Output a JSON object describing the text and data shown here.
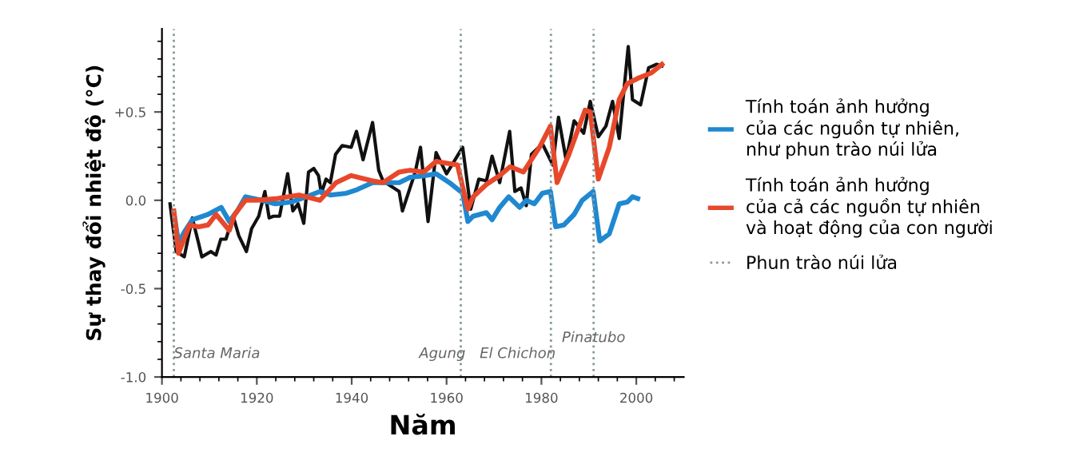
{
  "chart_data": {
    "type": "line",
    "xlabel": "Năm",
    "ylabel": "Sự thay đổi nhiệt độ (°C)",
    "xlim": [
      1900,
      2010
    ],
    "xticks": [
      1900,
      1920,
      1940,
      1960,
      1980,
      2000
    ],
    "ylim": [
      -1.0,
      0.97
    ],
    "yticks": [
      {
        "value": -1.0,
        "label": "-1.0"
      },
      {
        "value": -0.5,
        "label": "-0.5"
      },
      {
        "value": 0.0,
        "label": "0.0"
      },
      {
        "value": 0.5,
        "label": "+0.5"
      }
    ],
    "grid": false,
    "legend": "right",
    "marker": "none",
    "line_style": "solid",
    "series": [
      {
        "color": "#111111",
        "x": [
          1901.7,
          1903,
          1904.7,
          1906.4,
          1907.7,
          1908.4,
          1910.3,
          1911.4,
          1912.4,
          1913.5,
          1915,
          1916.2,
          1917.8,
          1918.9,
          1920.4,
          1921.7,
          1922.6,
          1923.5,
          1924.8,
          1926.5,
          1927.6,
          1928.7,
          1929.9,
          1930.9,
          1932,
          1933,
          1933.6,
          1934.6,
          1935.5,
          1936.6,
          1938,
          1939.9,
          1941,
          1942.4,
          1944.4,
          1945.7,
          1946.6,
          1950,
          1950.7,
          1953.4,
          1954.5,
          1956.1,
          1957.8,
          1960,
          1963.4,
          1965.1,
          1966.8,
          1968.4,
          1969.6,
          1971.2,
          1973.3,
          1974.4,
          1975.7,
          1976.8,
          1977.9,
          1980.2,
          1982.4,
          1983.6,
          1985.2,
          1986.9,
          1988.9,
          1990.3,
          1992,
          1993.6,
          1995,
          1996.4,
          1998.3,
          1999.2,
          2000.9,
          2002.6,
          2004.3,
          2005.4
        ],
        "values": [
          -0.02,
          -0.29,
          -0.32,
          -0.1,
          -0.24,
          -0.32,
          -0.29,
          -0.31,
          -0.22,
          -0.22,
          -0.09,
          -0.2,
          -0.29,
          -0.16,
          -0.09,
          0.05,
          -0.1,
          -0.09,
          -0.09,
          0.15,
          -0.06,
          -0.02,
          -0.13,
          0.16,
          0.18,
          0.14,
          0.04,
          0.12,
          0.1,
          0.26,
          0.31,
          0.3,
          0.39,
          0.23,
          0.44,
          0.17,
          0.11,
          0.05,
          -0.06,
          0.16,
          0.3,
          -0.12,
          0.27,
          0.15,
          0.3,
          -0.05,
          0.12,
          0.11,
          0.25,
          0.1,
          0.39,
          0.05,
          0.07,
          -0.03,
          0.26,
          0.32,
          0.2,
          0.47,
          0.23,
          0.45,
          0.38,
          0.56,
          0.36,
          0.42,
          0.56,
          0.35,
          0.87,
          0.57,
          0.54,
          0.75,
          0.77,
          0.76
        ]
      },
      {
        "name": "Tính toán ảnh hưởng\ncủa các nguồn tự nhiên,\nnhư phun trào núi lửa",
        "color": "#1f88d0",
        "x": [
          1902.5,
          1903.5,
          1904.7,
          1906.4,
          1909.7,
          1912.5,
          1914.2,
          1915.9,
          1917.6,
          1921,
          1923.9,
          1927.2,
          1930.5,
          1933.3,
          1935.5,
          1938.9,
          1941.1,
          1944.4,
          1946.6,
          1950,
          1952.3,
          1955.6,
          1957.8,
          1960.6,
          1963.4,
          1964.5,
          1965.6,
          1968.4,
          1969.6,
          1971.2,
          1973.1,
          1975.4,
          1976.8,
          1978.5,
          1980.2,
          1981.9,
          1983,
          1984.7,
          1986.9,
          1988.6,
          1990.9,
          1992.3,
          1994.3,
          1996.4,
          1998.1,
          1999.2,
          2000.3
        ],
        "values": [
          -0.07,
          -0.24,
          -0.18,
          -0.11,
          -0.08,
          -0.04,
          -0.12,
          -0.06,
          0.02,
          0.0,
          -0.02,
          -0.01,
          0.02,
          0.05,
          0.03,
          0.04,
          0.06,
          0.1,
          0.1,
          0.1,
          0.13,
          0.14,
          0.15,
          0.1,
          0.04,
          -0.12,
          -0.09,
          -0.07,
          -0.11,
          -0.04,
          0.02,
          -0.04,
          0.0,
          -0.02,
          0.04,
          0.05,
          -0.15,
          -0.14,
          -0.08,
          0.0,
          0.05,
          -0.23,
          -0.19,
          -0.02,
          -0.01,
          0.02,
          0.01
        ]
      },
      {
        "name": "Tính toán ảnh hưởng\ncủa cả các nguồn tự nhiên\nvà hoạt động của con người",
        "color": "#e8482a",
        "x": [
          1902.5,
          1903.5,
          1905.8,
          1907.7,
          1909.7,
          1911.4,
          1914.2,
          1915.3,
          1917.6,
          1919.9,
          1924.4,
          1928.9,
          1933.3,
          1936.7,
          1939.9,
          1944.4,
          1946.6,
          1950,
          1952.3,
          1955.2,
          1957.8,
          1962.3,
          1964.5,
          1965.6,
          1968.4,
          1971.2,
          1973.4,
          1976.2,
          1979.6,
          1981.9,
          1983.3,
          1985.8,
          1989.2,
          1990.3,
          1992,
          1994.3,
          1996.4,
          1998.1,
          2000.3,
          2003.1,
          2005.4
        ],
        "values": [
          -0.06,
          -0.3,
          -0.14,
          -0.15,
          -0.14,
          -0.08,
          -0.17,
          -0.08,
          0.0,
          0.0,
          0.01,
          0.03,
          0.0,
          0.1,
          0.14,
          0.11,
          0.1,
          0.16,
          0.17,
          0.16,
          0.22,
          0.2,
          -0.05,
          0.02,
          0.09,
          0.14,
          0.19,
          0.16,
          0.3,
          0.42,
          0.1,
          0.26,
          0.51,
          0.5,
          0.12,
          0.3,
          0.57,
          0.66,
          0.69,
          0.72,
          0.77
        ]
      }
    ],
    "ref_lines": [
      {
        "axis": "x",
        "value": 1902.5,
        "label": "Santa Maria",
        "color": "#8a9a9a",
        "line_style": "dotted"
      },
      {
        "axis": "x",
        "value": 1963,
        "label": "Agung",
        "color": "#8a9a9a",
        "line_style": "dotted"
      },
      {
        "axis": "x",
        "value": 1982,
        "label": "El Chichon",
        "color": "#8a9a9a",
        "line_style": "dotted"
      },
      {
        "axis": "x",
        "value": 1991,
        "label": "Pinatubo",
        "color": "#8a9a9a",
        "line_style": "dotted"
      }
    ],
    "annotations": [
      "Phun trào núi lửa"
    ]
  }
}
